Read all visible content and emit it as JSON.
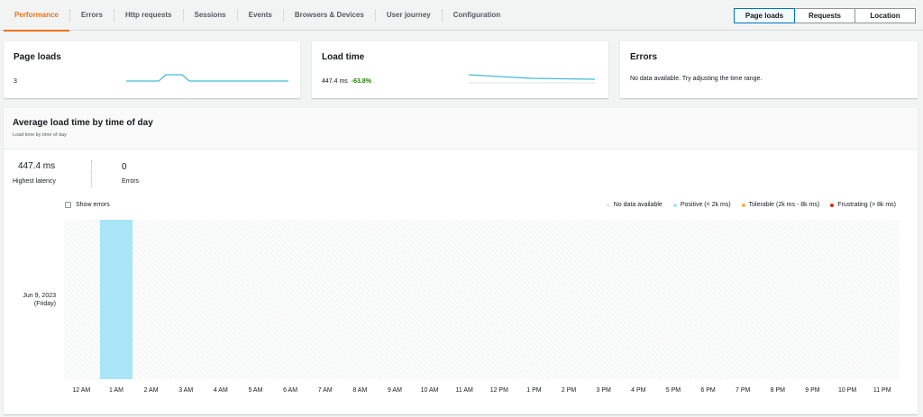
{
  "tabs": [
    "Performance",
    "Errors",
    "Http requests",
    "Sessions",
    "Events",
    "Browsers & Devices",
    "User journey",
    "Configuration"
  ],
  "toggle": [
    "Page loads",
    "Requests",
    "Location"
  ],
  "cards": [
    {
      "title": "Page loads",
      "value": "3"
    },
    {
      "title": "Load time",
      "value": "447.4 ms",
      "change": "-63.8%"
    },
    {
      "title": "Errors",
      "message": "No data available. Try adjusting the time range."
    }
  ],
  "section": {
    "title": "Average load time by time of day",
    "subtitle": "Load time by time of day",
    "stats": [
      {
        "value": "447.4 ms",
        "label": "Highest latency"
      },
      {
        "value": "0",
        "label": "Errors"
      }
    ],
    "checkbox": "Show errors",
    "legend": [
      {
        "label": "No data available",
        "color": "#eaeded"
      },
      {
        "label": "Positive (< 2k ms)",
        "color": "#a8e6f7"
      },
      {
        "label": "Tolerable (2k ms - 8k ms)",
        "color": "#f2b33d"
      },
      {
        "label": "Frustrating (> 8k ms)",
        "color": "#d13212"
      }
    ],
    "row": {
      "date": "Jun 9, 2023",
      "day": "(Friday)"
    },
    "hours": [
      "12 AM",
      "1 AM",
      "2 AM",
      "3 AM",
      "4 AM",
      "5 AM",
      "6 AM",
      "7 AM",
      "8 AM",
      "9 AM",
      "10 AM",
      "11 AM",
      "12 PM",
      "1 PM",
      "2 PM",
      "3 PM",
      "4 PM",
      "5 PM",
      "6 PM",
      "7 PM",
      "8 PM",
      "9 PM",
      "10 PM",
      "11 PM"
    ],
    "values": [
      null,
      447.4,
      null,
      null,
      null,
      null,
      null,
      null,
      null,
      null,
      null,
      null,
      null,
      null,
      null,
      null,
      null,
      null,
      null,
      null,
      null,
      null,
      null,
      null
    ]
  }
}
